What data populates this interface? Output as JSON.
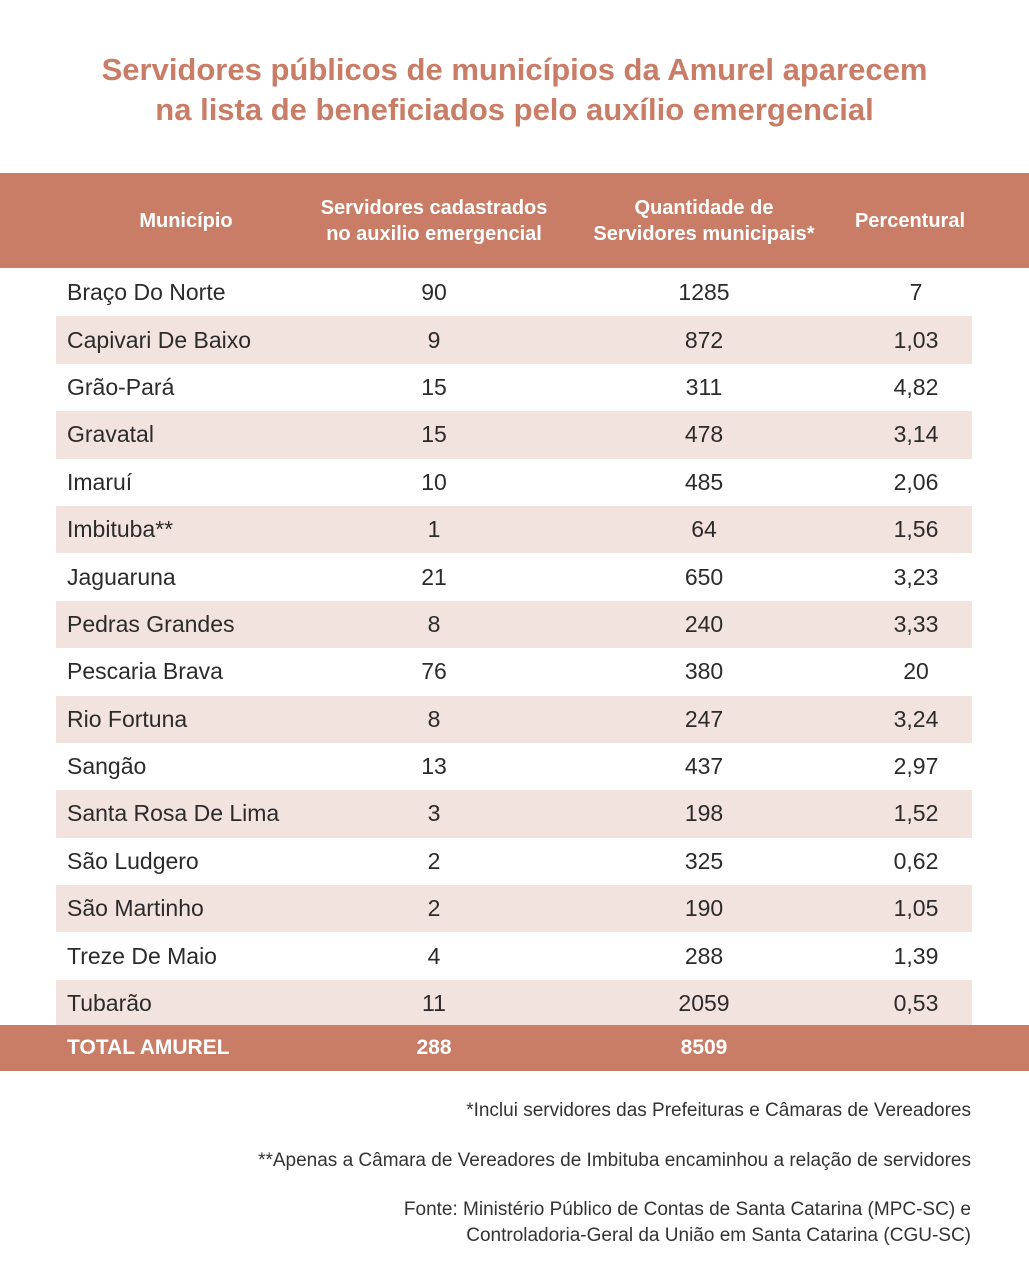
{
  "title": {
    "line1": "Servidores públicos de municípios da Amurel aparecem",
    "line2": "na lista de beneficiados pelo auxílio emergencial"
  },
  "header": {
    "col1": "Município",
    "col2_line1": "Servidores cadastrados",
    "col2_line2": "no auxilio emergencial",
    "col3_line1": "Quantidade de",
    "col3_line2": "Servidores municipais*",
    "col4": "Percentural"
  },
  "rows": [
    {
      "municipio": "Braço Do Norte",
      "cadastrados": "90",
      "quantidade": "1285",
      "percentual": "7"
    },
    {
      "municipio": "Capivari De Baixo",
      "cadastrados": "9",
      "quantidade": "872",
      "percentual": "1,03"
    },
    {
      "municipio": "Grão-Pará",
      "cadastrados": "15",
      "quantidade": "311",
      "percentual": "4,82"
    },
    {
      "municipio": "Gravatal",
      "cadastrados": "15",
      "quantidade": "478",
      "percentual": "3,14"
    },
    {
      "municipio": "Imaruí",
      "cadastrados": "10",
      "quantidade": "485",
      "percentual": "2,06"
    },
    {
      "municipio": "Imbituba**",
      "cadastrados": "1",
      "quantidade": "64",
      "percentual": "1,56"
    },
    {
      "municipio": "Jaguaruna",
      "cadastrados": "21",
      "quantidade": "650",
      "percentual": "3,23"
    },
    {
      "municipio": "Pedras Grandes",
      "cadastrados": "8",
      "quantidade": "240",
      "percentual": "3,33"
    },
    {
      "municipio": "Pescaria Brava",
      "cadastrados": "76",
      "quantidade": "380",
      "percentual": "20"
    },
    {
      "municipio": "Rio Fortuna",
      "cadastrados": "8",
      "quantidade": "247",
      "percentual": "3,24"
    },
    {
      "municipio": "Sangão",
      "cadastrados": "13",
      "quantidade": "437",
      "percentual": "2,97"
    },
    {
      "municipio": "Santa Rosa De Lima",
      "cadastrados": "3",
      "quantidade": "198",
      "percentual": "1,52"
    },
    {
      "municipio": "São Ludgero",
      "cadastrados": "2",
      "quantidade": "325",
      "percentual": "0,62"
    },
    {
      "municipio": "São Martinho",
      "cadastrados": "2",
      "quantidade": "190",
      "percentual": "1,05"
    },
    {
      "municipio": "Treze De Maio",
      "cadastrados": "4",
      "quantidade": "288",
      "percentual": "1,39"
    },
    {
      "municipio": "Tubarão",
      "cadastrados": "11",
      "quantidade": "2059",
      "percentual": "0,53"
    }
  ],
  "total": {
    "label": "TOTAL AMUREL",
    "cadastrados": "288",
    "quantidade": "8509"
  },
  "notes": {
    "note1": "*Inclui servidores das Prefeituras e Câmaras de Vereadores",
    "note2": "**Apenas a Câmara de Vereadores de Imbituba encaminhou a relação de servidores",
    "source_line1": "Fonte: Ministério Público de Contas de Santa Catarina (MPC-SC) e",
    "source_line2": "Controladoria-Geral da União em Santa Catarina (CGU-SC)"
  },
  "colors": {
    "accent": "#c97c66",
    "row_alt": "#f3e3de"
  }
}
